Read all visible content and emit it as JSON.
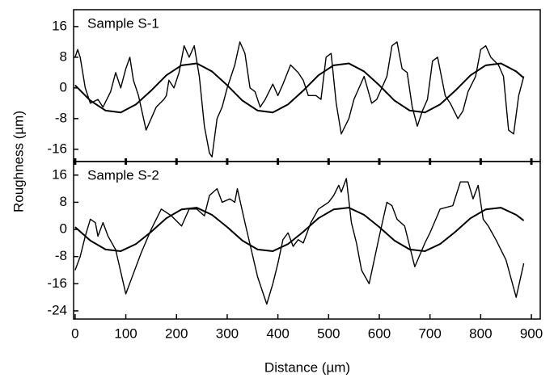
{
  "chart_data": [
    {
      "type": "line",
      "label": "Sample S-1",
      "ylabel": "Roughness (µm)",
      "xlim": [
        -3,
        917.5
      ],
      "ylim": [
        -19.2,
        20.4
      ],
      "yticks": [
        -16,
        -8,
        0,
        8,
        16
      ],
      "series": [
        {
          "color": "#000000",
          "x": [
            0,
            5,
            10,
            20,
            30,
            45,
            55,
            70,
            80,
            90,
            100,
            108,
            115,
            125,
            140,
            150,
            160,
            175,
            180,
            185,
            195,
            205,
            215,
            225,
            235,
            245,
            255,
            265,
            270,
            280,
            290,
            300,
            315,
            325,
            335,
            345,
            355,
            365,
            375,
            390,
            400,
            410,
            425,
            440,
            450,
            460,
            475,
            485,
            495,
            505,
            515,
            525,
            540,
            550,
            560,
            570,
            585,
            595,
            605,
            615,
            625,
            635,
            645,
            655,
            665,
            675,
            685,
            695,
            705,
            715,
            730,
            740,
            755,
            765,
            775,
            790,
            800,
            810,
            820,
            835,
            845,
            855,
            865,
            875,
            885
          ],
          "values": [
            8,
            10,
            8,
            0,
            -4,
            -3,
            -5,
            -1,
            4,
            0,
            5,
            8,
            2,
            -2,
            -11,
            -8,
            -5,
            -3,
            -2,
            2,
            0,
            4,
            11,
            8,
            11,
            3,
            -10,
            -17,
            -18,
            -8,
            -5,
            0,
            6,
            12,
            9,
            0,
            -1,
            -5,
            -3,
            1,
            -2,
            1,
            6,
            4,
            2,
            -2,
            -2,
            -3,
            8,
            9,
            -4,
            -12,
            -8,
            -3,
            0,
            3,
            -4,
            -3,
            0,
            3,
            11,
            12,
            5,
            4,
            -5,
            -10,
            -6,
            -3,
            7,
            8,
            -2,
            -4,
            -8,
            -6,
            -1,
            3,
            10,
            11,
            8,
            6,
            3,
            -11,
            -12,
            -2,
            3
          ]
        },
        {
          "color": "#000000",
          "x": [
            0,
            30,
            60,
            90,
            120,
            150,
            180,
            210,
            240,
            270,
            300,
            330,
            360,
            390,
            420,
            450,
            480,
            510,
            540,
            570,
            600,
            630,
            660,
            690,
            720,
            750,
            780,
            810,
            840,
            870,
            885
          ],
          "values": [
            0.7,
            -3.3,
            -5.9,
            -6.4,
            -4.3,
            -0.7,
            3.3,
            5.9,
            6.4,
            4.3,
            0.7,
            -3.3,
            -5.9,
            -6.4,
            -4.3,
            -0.7,
            3.3,
            5.9,
            6.4,
            4.3,
            0.7,
            -3.3,
            -5.9,
            -6.4,
            -4.3,
            -0.7,
            3.3,
            5.9,
            6.4,
            4.3,
            2.6
          ]
        }
      ]
    },
    {
      "type": "line",
      "label": "Sample S-2",
      "xlabel": "Distance (µm)",
      "xlim": [
        -3,
        917.5
      ],
      "xticks": [
        0,
        100,
        200,
        300,
        400,
        500,
        600,
        700,
        800,
        900
      ],
      "ylim": [
        -26.4,
        20
      ],
      "yticks": [
        -24,
        -16,
        -8,
        0,
        8,
        16
      ],
      "series": [
        {
          "color": "#000000",
          "x": [
            0,
            10,
            20,
            30,
            40,
            45,
            55,
            65,
            80,
            100,
            115,
            130,
            150,
            170,
            190,
            210,
            225,
            240,
            255,
            265,
            280,
            290,
            305,
            315,
            320,
            335,
            360,
            378,
            390,
            400,
            410,
            420,
            430,
            440,
            450,
            465,
            480,
            500,
            510,
            520,
            525,
            535,
            545,
            555,
            565,
            580,
            600,
            615,
            625,
            635,
            650,
            670,
            690,
            700,
            720,
            745,
            760,
            775,
            785,
            795,
            805,
            815,
            830,
            850,
            870,
            885
          ],
          "values": [
            -12,
            -8,
            -2,
            3,
            2,
            -2,
            2,
            -2,
            -6,
            -19,
            -13,
            -7,
            0,
            6,
            4,
            1,
            6,
            6,
            4,
            10,
            12,
            8,
            9,
            8,
            12,
            2,
            -14,
            -22,
            -16,
            -10,
            -3,
            -1,
            -5,
            -3,
            -4,
            2,
            6,
            8,
            10,
            13,
            11,
            15,
            2,
            -4,
            -12,
            -16,
            -2,
            8,
            7,
            3,
            1,
            -11,
            -4,
            -1,
            6,
            7,
            14,
            14,
            9,
            13,
            3,
            1,
            -3,
            -9,
            -20,
            -10
          ]
        },
        {
          "color": "#000000",
          "x": [
            0,
            30,
            60,
            90,
            120,
            150,
            180,
            210,
            240,
            270,
            300,
            330,
            360,
            390,
            420,
            450,
            480,
            510,
            540,
            570,
            600,
            630,
            660,
            690,
            720,
            750,
            780,
            810,
            840,
            870,
            885
          ],
          "values": [
            0.7,
            -3.3,
            -5.9,
            -6.4,
            -4.3,
            -0.7,
            3.3,
            5.9,
            6.4,
            4.3,
            0.7,
            -3.3,
            -5.9,
            -6.4,
            -4.3,
            -0.7,
            3.3,
            5.9,
            6.4,
            4.3,
            0.7,
            -3.3,
            -5.9,
            -6.4,
            -4.3,
            -0.7,
            3.3,
            5.9,
            6.4,
            4.3,
            2.6
          ]
        }
      ]
    }
  ]
}
